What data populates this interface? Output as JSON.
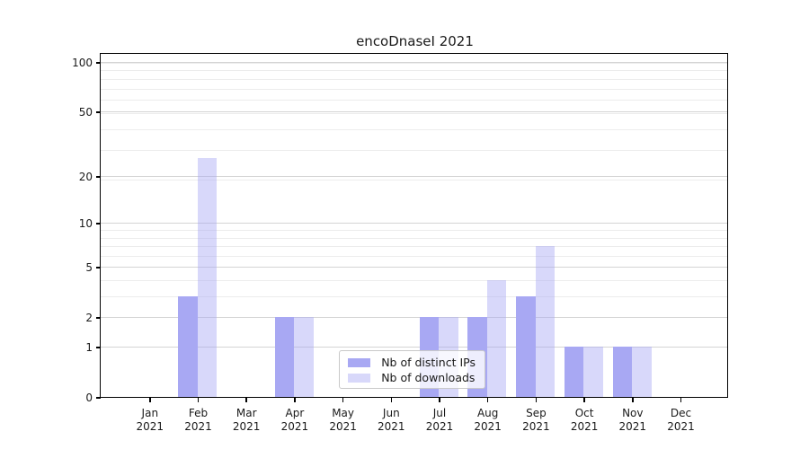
{
  "figure": {
    "title": "encoDnaseI 2021"
  },
  "chart_data": {
    "type": "bar",
    "title": "encoDnaseI 2021",
    "year": "2021",
    "categories": [
      "Jan",
      "Feb",
      "Mar",
      "Apr",
      "May",
      "Jun",
      "Jul",
      "Aug",
      "Sep",
      "Oct",
      "Nov",
      "Dec"
    ],
    "series": [
      {
        "name": "Nb of distinct IPs",
        "color": "#a8a8f3",
        "opacity": 1,
        "values": [
          0,
          3,
          0,
          2,
          0,
          0,
          2,
          2,
          3,
          1,
          1,
          0
        ]
      },
      {
        "name": "Nb of downloads",
        "color": "#a8a8f3",
        "opacity": 0.45,
        "values": [
          0,
          26,
          0,
          2,
          0,
          0,
          2,
          4,
          7,
          1,
          1,
          0
        ]
      }
    ],
    "xlabel": "",
    "ylabel": "",
    "yscale": "log10(value+1)",
    "yticks": [
      0,
      1,
      2,
      5,
      10,
      20,
      50,
      100
    ],
    "minor_gridlines_value_plus1": [
      2,
      3,
      4,
      5,
      6,
      7,
      8,
      9,
      10,
      20,
      30,
      40,
      50,
      60,
      70,
      80,
      90,
      100
    ],
    "ylim": [
      0,
      111
    ],
    "grid": "horizontal",
    "legend_position": "inside-bottom-center",
    "colors": {
      "major_grid": "#d4d4d4",
      "minor_grid": "#ececec",
      "spine": "#000000",
      "text": "#1a1a1a",
      "downloads_rendered_fill": "#d9d9f8"
    }
  }
}
